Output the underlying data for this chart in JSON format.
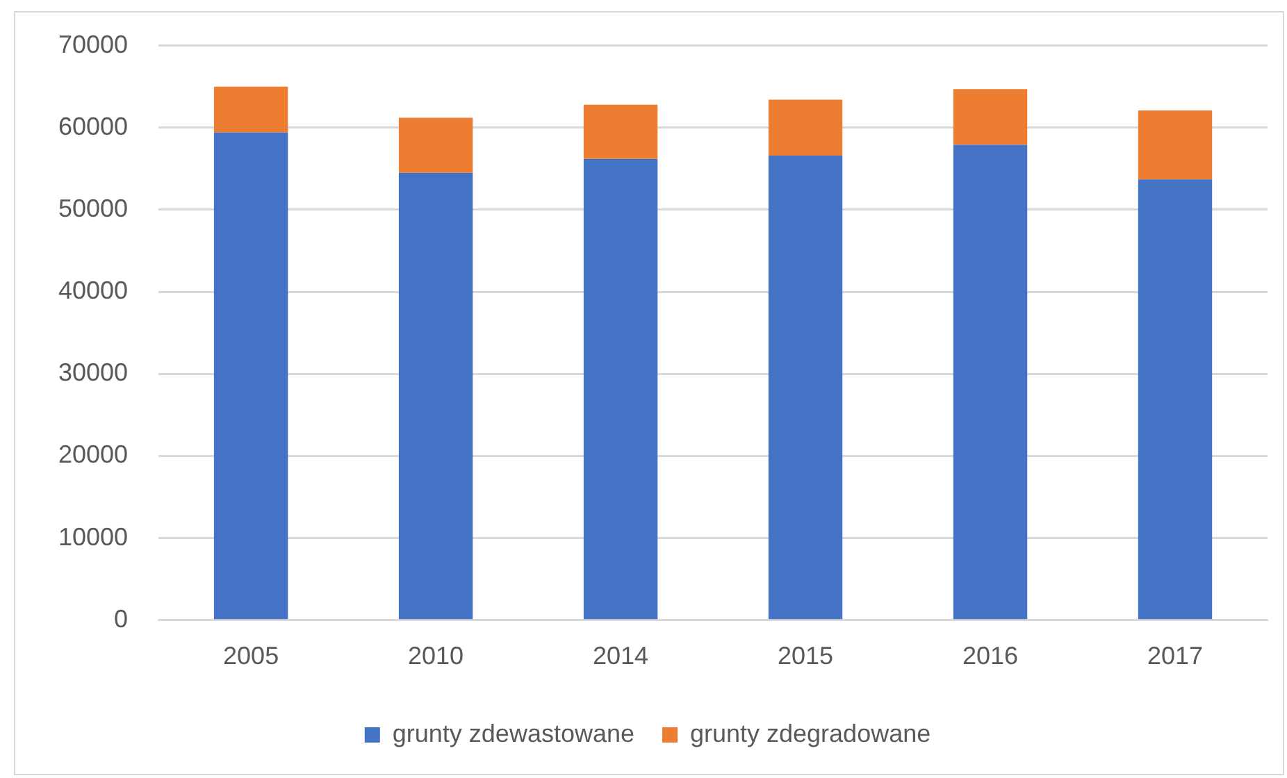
{
  "chart_data": {
    "type": "bar",
    "stacked": true,
    "categories": [
      "2005",
      "2010",
      "2014",
      "2015",
      "2016",
      "2017"
    ],
    "series": [
      {
        "name": "grunty zdewastowane",
        "color": "#4472c4",
        "values": [
          59400,
          54500,
          56200,
          56600,
          57900,
          53700
        ]
      },
      {
        "name": "grunty zdegradowane",
        "color": "#ed7d31",
        "values": [
          5600,
          6700,
          6600,
          6800,
          6800,
          8400
        ]
      }
    ],
    "ylim": [
      0,
      70000
    ],
    "yticks": [
      0,
      10000,
      20000,
      30000,
      40000,
      50000,
      60000,
      70000
    ],
    "grid": "y",
    "legend": "bottom"
  }
}
